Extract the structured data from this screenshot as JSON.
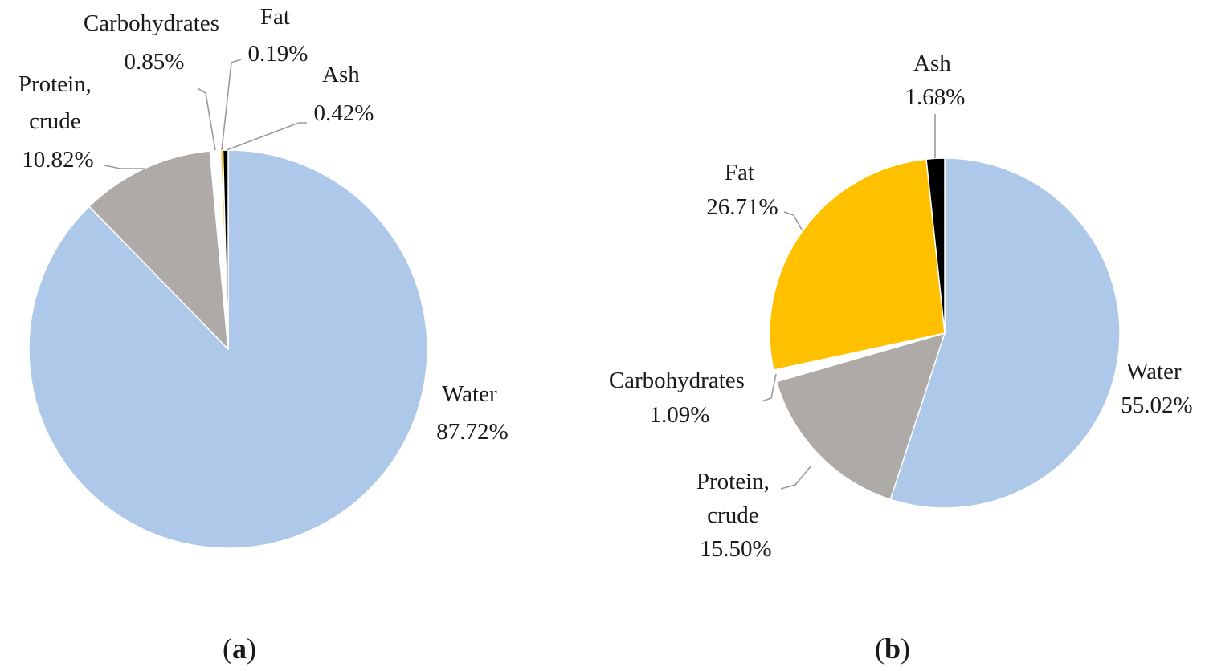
{
  "chart_data": [
    {
      "type": "pie",
      "id": "a",
      "caption_letter": "a",
      "series": [
        {
          "name": "Water",
          "label_lines": [
            "Water"
          ],
          "pct": "87.72%",
          "value": 87.72,
          "color": "#adc8e8"
        },
        {
          "name": "Protein, crude",
          "label_lines": [
            "Protein,",
            "crude"
          ],
          "pct": "10.82%",
          "value": 10.82,
          "color": "#aeaaa8"
        },
        {
          "name": "Carbohydrates",
          "label_lines": [
            "Carbohydrates"
          ],
          "pct": "0.85%",
          "value": 0.85,
          "color": "#ffffff"
        },
        {
          "name": "Fat",
          "label_lines": [
            "Fat"
          ],
          "pct": "0.19%",
          "value": 0.19,
          "color": "#ffc000"
        },
        {
          "name": "Ash",
          "label_lines": [
            "Ash"
          ],
          "pct": "0.42%",
          "value": 0.42,
          "color": "#000000"
        }
      ]
    },
    {
      "type": "pie",
      "id": "b",
      "caption_letter": "b",
      "series": [
        {
          "name": "Water",
          "label_lines": [
            "Water"
          ],
          "pct": "55.02%",
          "value": 55.02,
          "color": "#adc8e8"
        },
        {
          "name": "Protein, crude",
          "label_lines": [
            "Protein,",
            "crude"
          ],
          "pct": "15.50%",
          "value": 15.5,
          "color": "#aeaaa8"
        },
        {
          "name": "Carbohydrates",
          "label_lines": [
            "Carbohydrates"
          ],
          "pct": "1.09%",
          "value": 1.09,
          "color": "#ffffff"
        },
        {
          "name": "Fat",
          "label_lines": [
            "Fat"
          ],
          "pct": "26.71%",
          "value": 26.71,
          "color": "#ffc000"
        },
        {
          "name": "Ash",
          "label_lines": [
            "Ash"
          ],
          "pct": "1.68%",
          "value": 1.68,
          "color": "#000000"
        }
      ]
    }
  ]
}
